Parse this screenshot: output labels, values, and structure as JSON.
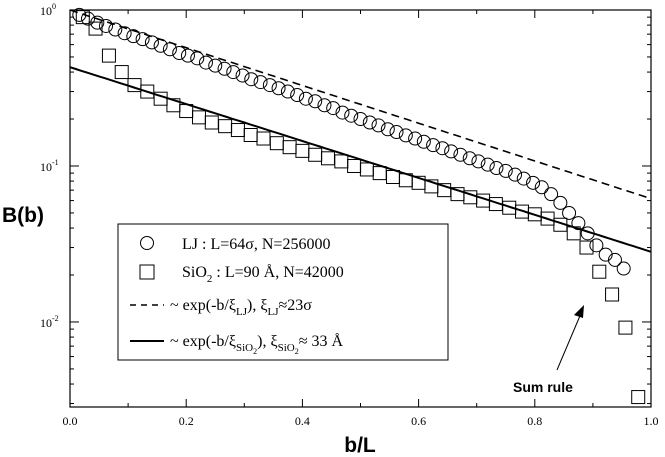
{
  "chart_data": {
    "type": "scatter",
    "x_axis": {
      "label": "b/L",
      "range": [
        0.0,
        1.0
      ],
      "ticks": [
        "0.0",
        "0.2",
        "0.4",
        "0.6",
        "0.8",
        "1.0"
      ]
    },
    "y_axis": {
      "label": "B(b)",
      "scale": "log",
      "range": [
        0.00285,
        1.0
      ],
      "ticks": [
        {
          "base": "10",
          "exp": "0"
        },
        {
          "base": "10",
          "exp": "-1"
        },
        {
          "base": "10",
          "exp": "-2"
        }
      ]
    },
    "grid": false,
    "legend_position": "left-bottom",
    "series": [
      {
        "name": "LJ : L=64σ, N=256000",
        "legend": {
          "main": "LJ : L=64σ, N=256000"
        },
        "marker": "circle",
        "x": [
          0.016,
          0.031,
          0.047,
          0.062,
          0.078,
          0.094,
          0.109,
          0.125,
          0.141,
          0.156,
          0.172,
          0.188,
          0.203,
          0.219,
          0.234,
          0.25,
          0.266,
          0.281,
          0.297,
          0.312,
          0.328,
          0.344,
          0.359,
          0.375,
          0.391,
          0.406,
          0.422,
          0.438,
          0.453,
          0.469,
          0.484,
          0.5,
          0.516,
          0.531,
          0.547,
          0.562,
          0.578,
          0.594,
          0.609,
          0.625,
          0.641,
          0.656,
          0.672,
          0.688,
          0.703,
          0.719,
          0.734,
          0.75,
          0.766,
          0.781,
          0.797,
          0.812,
          0.828,
          0.844,
          0.859,
          0.875,
          0.891,
          0.906,
          0.922,
          0.938,
          0.953
        ],
        "y": [
          0.93,
          0.88,
          0.83,
          0.79,
          0.75,
          0.71,
          0.68,
          0.65,
          0.62,
          0.59,
          0.56,
          0.53,
          0.51,
          0.49,
          0.46,
          0.44,
          0.42,
          0.4,
          0.38,
          0.36,
          0.345,
          0.33,
          0.315,
          0.3,
          0.285,
          0.27,
          0.26,
          0.245,
          0.235,
          0.22,
          0.21,
          0.2,
          0.19,
          0.182,
          0.172,
          0.165,
          0.157,
          0.15,
          0.143,
          0.136,
          0.13,
          0.124,
          0.118,
          0.112,
          0.107,
          0.102,
          0.097,
          0.093,
          0.088,
          0.083,
          0.078,
          0.073,
          0.066,
          0.058,
          0.05,
          0.043,
          0.037,
          0.031,
          0.027,
          0.025,
          0.022
        ]
      },
      {
        "name": "SiO2 : L=90 Å, N=42000",
        "legend": {
          "main": "SiO",
          "sub": "2",
          "rest": " : L=90 Å, N=42000"
        },
        "marker": "square",
        "x": [
          0.022,
          0.044,
          0.067,
          0.089,
          0.111,
          0.133,
          0.156,
          0.178,
          0.2,
          0.222,
          0.244,
          0.267,
          0.289,
          0.311,
          0.333,
          0.356,
          0.378,
          0.4,
          0.422,
          0.444,
          0.467,
          0.489,
          0.511,
          0.533,
          0.556,
          0.578,
          0.6,
          0.622,
          0.644,
          0.667,
          0.689,
          0.711,
          0.733,
          0.756,
          0.778,
          0.8,
          0.822,
          0.844,
          0.867,
          0.889,
          0.911,
          0.933,
          0.956,
          0.978
        ],
        "y": [
          0.9,
          0.76,
          0.51,
          0.4,
          0.33,
          0.3,
          0.27,
          0.245,
          0.225,
          0.205,
          0.19,
          0.18,
          0.17,
          0.158,
          0.15,
          0.14,
          0.132,
          0.125,
          0.118,
          0.112,
          0.107,
          0.1,
          0.095,
          0.09,
          0.085,
          0.081,
          0.078,
          0.074,
          0.07,
          0.066,
          0.063,
          0.06,
          0.057,
          0.054,
          0.051,
          0.049,
          0.046,
          0.042,
          0.037,
          0.03,
          0.021,
          0.015,
          0.0092,
          0.0033
        ]
      },
      {
        "name": "~ exp(-b/ξLJ), ξLJ≈23σ",
        "legend": {
          "pre": "~ exp(-b/ξ",
          "sub1": "LJ",
          "mid": "), ξ",
          "sub2": "LJ",
          "post": "≈23σ"
        },
        "style": "dashed",
        "function": "exp",
        "amplitude": 1.0,
        "xi_over_L": 0.359,
        "x_range": [
          0.0,
          1.0
        ]
      },
      {
        "name": "~ exp(-b/ξSiO2), ξSiO2≈ 33 Å",
        "legend": {
          "pre": "~ exp(-b/ξ",
          "sub1": "SiO",
          "subsub1": "2",
          "mid": "), ξ",
          "sub2": "SiO",
          "subsub2": "2",
          "post": "≈ 33 Å"
        },
        "style": "solid",
        "function": "exp",
        "amplitude": 0.43,
        "xi_over_L": 0.367,
        "x_range": [
          0.0,
          1.0
        ]
      }
    ],
    "annotation": {
      "text": "Sum rule",
      "target_x": 0.91,
      "target_y": 0.0168
    }
  }
}
